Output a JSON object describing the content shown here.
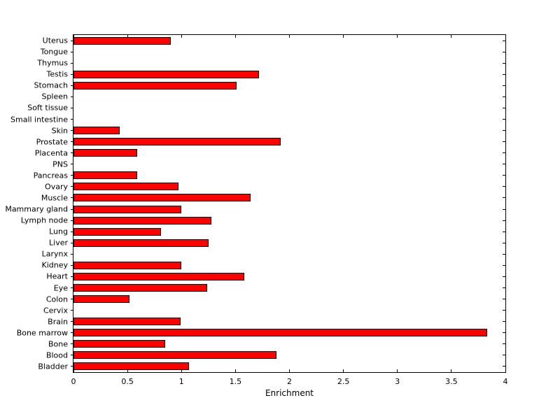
{
  "chart_data": {
    "type": "bar",
    "orientation": "horizontal",
    "title": "",
    "xlabel": "Enrichment",
    "ylabel": "",
    "xlim": [
      0,
      4
    ],
    "xticks": [
      0,
      0.5,
      1,
      1.5,
      2,
      2.5,
      3,
      3.5,
      4
    ],
    "xtick_labels": [
      "0",
      "0.5",
      "1",
      "1.5",
      "2",
      "2.5",
      "3",
      "3.5",
      "4"
    ],
    "grid": false,
    "legend": null,
    "bar_color": "#ff0000",
    "bar_edge_color": "#000000",
    "categories_top_to_bottom": [
      "Uterus",
      "Tongue",
      "Thymus",
      "Testis",
      "Stomach",
      "Spleen",
      "Soft tissue",
      "Small intestine",
      "Skin",
      "Prostate",
      "Placenta",
      "PNS",
      "Pancreas",
      "Ovary",
      "Muscle",
      "Mammary gland",
      "Lymph node",
      "Lung",
      "Liver",
      "Larynx",
      "Kidney",
      "Heart",
      "Eye",
      "Colon",
      "Cervix",
      "Brain",
      "Bone marrow",
      "Bone",
      "Blood",
      "Bladder"
    ],
    "values": [
      0.9,
      0,
      0,
      1.72,
      1.51,
      0,
      0,
      0,
      0.43,
      1.92,
      0.59,
      0,
      0.59,
      0.97,
      1.64,
      1.0,
      1.28,
      0.81,
      1.25,
      0,
      1.0,
      1.58,
      1.24,
      0.52,
      0,
      0.99,
      3.83,
      0.85,
      1.88,
      1.07
    ]
  }
}
